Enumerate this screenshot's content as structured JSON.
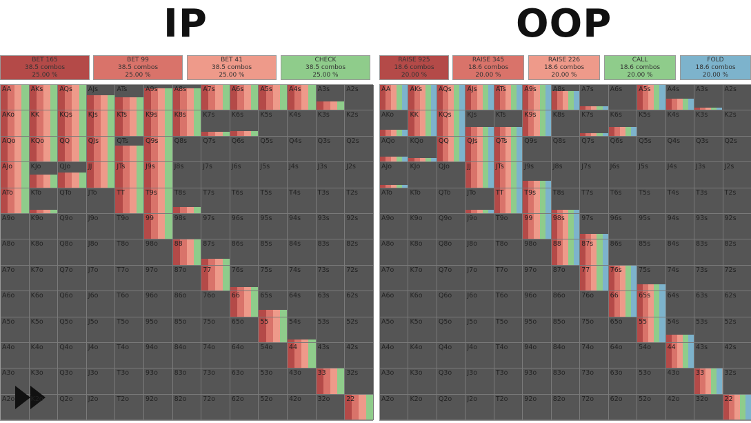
{
  "titles": {
    "ip": "IP",
    "oop": "OOP"
  },
  "ip": {
    "legend": [
      {
        "label": "BET 165",
        "combos": "38.5 combos",
        "pct": "25.00 %",
        "color": "#b44a48"
      },
      {
        "label": "BET 99",
        "combos": "38.5 combos",
        "pct": "25.00 %",
        "color": "#d9736a"
      },
      {
        "label": "BET 41",
        "combos": "38.5 combos",
        "pct": "25.00 %",
        "color": "#ee9a8a"
      },
      {
        "label": "CHECK",
        "combos": "38.5 combos",
        "pct": "25.00 %",
        "color": "#8fcc8b"
      }
    ]
  },
  "oop": {
    "legend": [
      {
        "label": "RAISE 925",
        "combos": "18.6 combos",
        "pct": "20.00 %",
        "color": "#b44a48"
      },
      {
        "label": "RAISE 345",
        "combos": "18.6 combos",
        "pct": "20.00 %",
        "color": "#d9736a"
      },
      {
        "label": "RAISE 226",
        "combos": "18.6 combos",
        "pct": "20.00 %",
        "color": "#ee9a8a"
      },
      {
        "label": "CALL",
        "combos": "18.6 combos",
        "pct": "20.00 %",
        "color": "#8fcc8b"
      },
      {
        "label": "FOLD",
        "combos": "18.6 combos",
        "pct": "20.00 %",
        "color": "#7db3cc"
      }
    ]
  },
  "ranks": [
    "A",
    "K",
    "Q",
    "J",
    "T",
    "9",
    "8",
    "7",
    "6",
    "5",
    "4",
    "3",
    "2"
  ],
  "ip_freq": [
    [
      1.0,
      1.0,
      1.0,
      0.6,
      0.5,
      0.85,
      0.85,
      1.0,
      1.0,
      1.0,
      1.0,
      0.35,
      0
    ],
    [
      1.0,
      1.0,
      1.0,
      1.0,
      1.0,
      1.0,
      1.0,
      0.15,
      0.2,
      0,
      0,
      0,
      0
    ],
    [
      1.0,
      1.0,
      1.0,
      1.0,
      0.65,
      1.0,
      0,
      0,
      0,
      0,
      0,
      0,
      0
    ],
    [
      1.0,
      0.5,
      0.6,
      1.0,
      1.0,
      1.0,
      0,
      0,
      0,
      0,
      0,
      0,
      0
    ],
    [
      1.0,
      0.15,
      0,
      0,
      1.0,
      1.0,
      0.25,
      0,
      0,
      0,
      0,
      0,
      0
    ],
    [
      0,
      0,
      0,
      0,
      0,
      1.0,
      0,
      0,
      0,
      0,
      0,
      0,
      0
    ],
    [
      0,
      0,
      0,
      0,
      0,
      0,
      1.0,
      0.25,
      0,
      0,
      0,
      0,
      0
    ],
    [
      0,
      0,
      0,
      0,
      0,
      0,
      0,
      1.0,
      0.15,
      0,
      0,
      0,
      0
    ],
    [
      0,
      0,
      0,
      0,
      0,
      0,
      0,
      0,
      1.0,
      0.25,
      0,
      0,
      0
    ],
    [
      0,
      0,
      0,
      0,
      0,
      0,
      0,
      0,
      0,
      1.0,
      0.1,
      0,
      0
    ],
    [
      0,
      0,
      0,
      0,
      0,
      0,
      0,
      0,
      0,
      0,
      1.0,
      0,
      0
    ],
    [
      0,
      0,
      0,
      0,
      0,
      0,
      0,
      0,
      0,
      0,
      0,
      1.0,
      0
    ],
    [
      0,
      0,
      0,
      0,
      0,
      0,
      0,
      0,
      0,
      0,
      0,
      0,
      1.0
    ]
  ],
  "oop_freq": [
    [
      1.0,
      1.0,
      1.0,
      1.0,
      1.0,
      1.0,
      0.75,
      0.15,
      0,
      1.0,
      0.45,
      0.1,
      0
    ],
    [
      0.25,
      1.0,
      1.0,
      0.35,
      0.35,
      1.0,
      0,
      0.1,
      0.35,
      0,
      0,
      0,
      0
    ],
    [
      0.2,
      0.15,
      1.0,
      1.0,
      1.0,
      0,
      0,
      0,
      0,
      0,
      0,
      0,
      0
    ],
    [
      0.1,
      0,
      0,
      1.0,
      1.0,
      0.25,
      0,
      0,
      0,
      0,
      0,
      0,
      0
    ],
    [
      0,
      0,
      0,
      0.15,
      1.0,
      1.0,
      0.15,
      0,
      0,
      0,
      0,
      0,
      0
    ],
    [
      0,
      0,
      0,
      0,
      0,
      1.0,
      1.0,
      0.2,
      0,
      0,
      0,
      0,
      0
    ],
    [
      0,
      0,
      0,
      0,
      0,
      0,
      1.0,
      1.0,
      0,
      0,
      0,
      0,
      0
    ],
    [
      0,
      0,
      0,
      0,
      0,
      0,
      0,
      1.0,
      1.0,
      0.25,
      0,
      0,
      0
    ],
    [
      0,
      0,
      0,
      0,
      0,
      0,
      0,
      0,
      1.0,
      1.0,
      0,
      0,
      0
    ],
    [
      0,
      0,
      0,
      0,
      0,
      0,
      0,
      0,
      0,
      1.0,
      0.3,
      0,
      0
    ],
    [
      0,
      0,
      0,
      0,
      0,
      0,
      0,
      0,
      0,
      0,
      1.0,
      0,
      0
    ],
    [
      0,
      0,
      0,
      0,
      0,
      0,
      0,
      0,
      0,
      0,
      0,
      1.0,
      0
    ],
    [
      0,
      0,
      0,
      0,
      0,
      0,
      0,
      0,
      0,
      0,
      0,
      0,
      1.0
    ]
  ],
  "controls": {
    "fast_forward": "fast-forward-icon"
  }
}
